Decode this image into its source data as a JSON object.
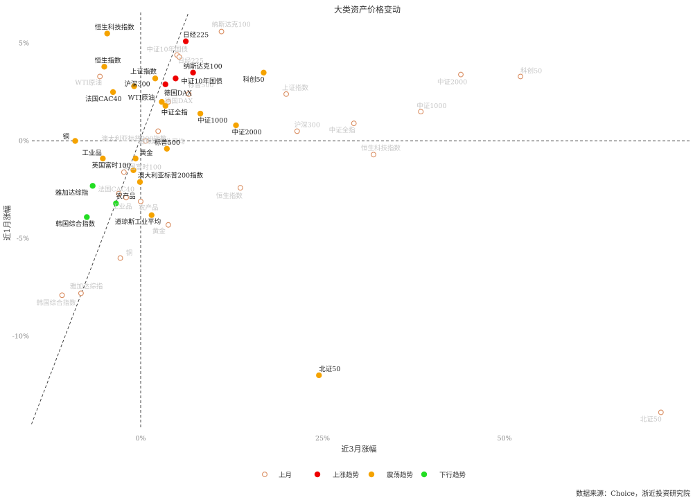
{
  "chart_data": {
    "type": "scatter",
    "title": "大类资产价格变动",
    "xlabel": "近3月涨幅",
    "ylabel": "近1月涨幅",
    "xlim": [
      -15,
      75
    ],
    "ylim": [
      -14.5,
      6.5
    ],
    "xticks": [
      {
        "v": 0,
        "label": "0%"
      },
      {
        "v": 25,
        "label": "25%"
      },
      {
        "v": 50,
        "label": "50%"
      }
    ],
    "yticks": [
      {
        "v": 5,
        "label": "5%"
      },
      {
        "v": 0,
        "label": "0%"
      },
      {
        "v": -5,
        "label": "-5%"
      },
      {
        "v": -10,
        "label": "-10%"
      }
    ],
    "legend": [
      {
        "name": "上月",
        "color": "#d98c5f",
        "hollow": true
      },
      {
        "name": "上涨趋势",
        "color": "#ee0000",
        "hollow": false
      },
      {
        "name": "震荡趋势",
        "color": "#f5a300",
        "hollow": false
      },
      {
        "name": "下行趋势",
        "color": "#22dd22",
        "hollow": false
      }
    ],
    "legend_position": "bottom",
    "source": "数据来源：Choice，浙近投资研究院",
    "colors": {
      "上月": "#d98c5f",
      "上涨趋势": "#ee0000",
      "震荡趋势": "#f5a300",
      "下行趋势": "#22dd22"
    },
    "series": [
      {
        "name": "上月",
        "points": [
          {
            "label": "纳斯达克100",
            "x": 11.1,
            "y": 5.6
          },
          {
            "label": "中证10年国债",
            "x": 5.0,
            "y": 4.4
          },
          {
            "label": "日经225",
            "x": 5.3,
            "y": 4.3
          },
          {
            "label": "标普500",
            "x": 6.6,
            "y": 2.4
          },
          {
            "label": "WTI原油",
            "x": -5.6,
            "y": 3.3
          },
          {
            "label": "德国DAX",
            "x": 3.8,
            "y": 2.0
          },
          {
            "label": "道琼斯工业平均",
            "x": 2.4,
            "y": 0.5
          },
          {
            "label": "澳大利亚标普200指数",
            "x": 0.7,
            "y": 0.0
          },
          {
            "label": "上证指数",
            "x": 20.0,
            "y": 2.4
          },
          {
            "label": "沪深300",
            "x": 21.5,
            "y": 0.5
          },
          {
            "label": "中证全指",
            "x": 29.3,
            "y": 0.9
          },
          {
            "label": "中证2000",
            "x": 44.0,
            "y": 3.4
          },
          {
            "label": "科创50",
            "x": 52.2,
            "y": 3.3
          },
          {
            "label": "中证1000",
            "x": 38.5,
            "y": 1.5
          },
          {
            "label": "恒生科技指数",
            "x": 32.0,
            "y": -0.7
          },
          {
            "label": "恒生指数",
            "x": 13.7,
            "y": -2.4
          },
          {
            "label": "英国富时100",
            "x": -2.3,
            "y": -1.6
          },
          {
            "label": "法国CAC40",
            "x": -3.0,
            "y": -2.7
          },
          {
            "label": "工业品",
            "x": -2.0,
            "y": -2.9
          },
          {
            "label": "农产品",
            "x": 0.0,
            "y": -3.1
          },
          {
            "label": "黄金",
            "x": 3.8,
            "y": -4.3
          },
          {
            "label": "铜",
            "x": -2.8,
            "y": -6.0
          },
          {
            "label": "雅加达综指",
            "x": -8.2,
            "y": -7.8
          },
          {
            "label": "韩国综合指数",
            "x": -10.8,
            "y": -7.9
          },
          {
            "label": "北证50",
            "x": 71.5,
            "y": -13.9
          }
        ]
      },
      {
        "name": "上涨趋势",
        "points": [
          {
            "label": "日经225",
            "x": 6.2,
            "y": 5.1
          },
          {
            "label": "纳斯达克100",
            "x": 7.2,
            "y": 3.5
          },
          {
            "label": "中证10年国债",
            "x": 4.8,
            "y": 3.2
          },
          {
            "label": "德国DAX",
            "x": 3.4,
            "y": 2.9
          }
        ]
      },
      {
        "name": "震荡趋势",
        "points": [
          {
            "label": "恒生科技指数",
            "x": -4.6,
            "y": 5.5
          },
          {
            "label": "恒生指数",
            "x": -5.0,
            "y": 3.8
          },
          {
            "label": "上证指数",
            "x": 2.0,
            "y": 3.2
          },
          {
            "label": "沪深300",
            "x": -0.9,
            "y": 2.8
          },
          {
            "label": "法国CAC40",
            "x": -3.8,
            "y": 2.5
          },
          {
            "label": "WTI原油",
            "x": 2.9,
            "y": 2.0
          },
          {
            "label": "中证全指",
            "x": 3.4,
            "y": 1.8
          },
          {
            "label": "中证1000",
            "x": 8.2,
            "y": 1.4
          },
          {
            "label": "中证2000",
            "x": 13.1,
            "y": 0.8
          },
          {
            "label": "科创50",
            "x": 16.9,
            "y": 3.5
          },
          {
            "label": "铜",
            "x": -9.0,
            "y": 0.0
          },
          {
            "label": "标普500",
            "x": 3.6,
            "y": -0.4
          },
          {
            "label": "工业品",
            "x": -5.2,
            "y": -0.9
          },
          {
            "label": "黄金",
            "x": -0.7,
            "y": -0.9
          },
          {
            "label": "英国富时100",
            "x": -1.0,
            "y": -1.5
          },
          {
            "label": "澳大利亚标普200指数",
            "x": -0.1,
            "y": -2.1
          },
          {
            "label": "道琼斯工业平均",
            "x": 1.5,
            "y": -3.8
          },
          {
            "label": "北证50",
            "x": 24.5,
            "y": -12.0
          }
        ]
      },
      {
        "name": "下行趋势",
        "points": [
          {
            "label": "雅加达综指",
            "x": -6.6,
            "y": -2.3
          },
          {
            "label": "农产品",
            "x": -3.4,
            "y": -3.2
          },
          {
            "label": "韩国综合指数",
            "x": -7.4,
            "y": -3.9
          }
        ]
      }
    ],
    "reference_lines": [
      {
        "name": "y=0",
        "type": "horizontal",
        "y": 0
      },
      {
        "name": "x=0",
        "type": "vertical",
        "x": 0
      },
      {
        "name": "diagonal",
        "type": "segment",
        "from": [
          -15,
          -14.5
        ],
        "to": [
          6.5,
          6.5
        ]
      }
    ]
  }
}
